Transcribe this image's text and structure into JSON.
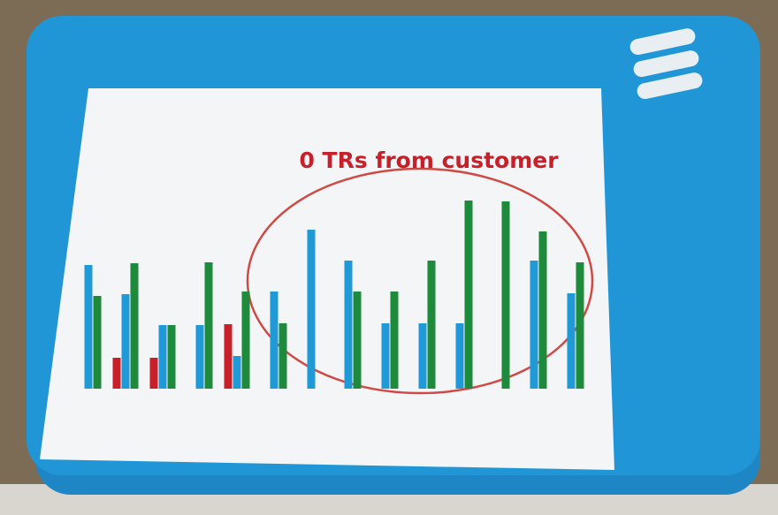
{
  "chart_data": {
    "type": "bar",
    "annotation": "0 TRs from customer",
    "categories": [
      null,
      null,
      null,
      null,
      null,
      null,
      null,
      null,
      null,
      null,
      null,
      null,
      null,
      null
    ],
    "series": [
      {
        "color": "#c8202b",
        "values": [
          null,
          35,
          35,
          null,
          73,
          null,
          null,
          null,
          null,
          null,
          null,
          null,
          null,
          null
        ]
      },
      {
        "color": "#1f9ad6",
        "values": [
          140,
          107,
          72,
          72,
          37,
          110,
          180,
          145,
          74,
          74,
          74,
          null,
          145,
          108
        ]
      },
      {
        "color": "#1e8a3c",
        "values": [
          105,
          142,
          72,
          143,
          110,
          74,
          null,
          110,
          110,
          145,
          213,
          212,
          178,
          143
        ]
      }
    ]
  }
}
